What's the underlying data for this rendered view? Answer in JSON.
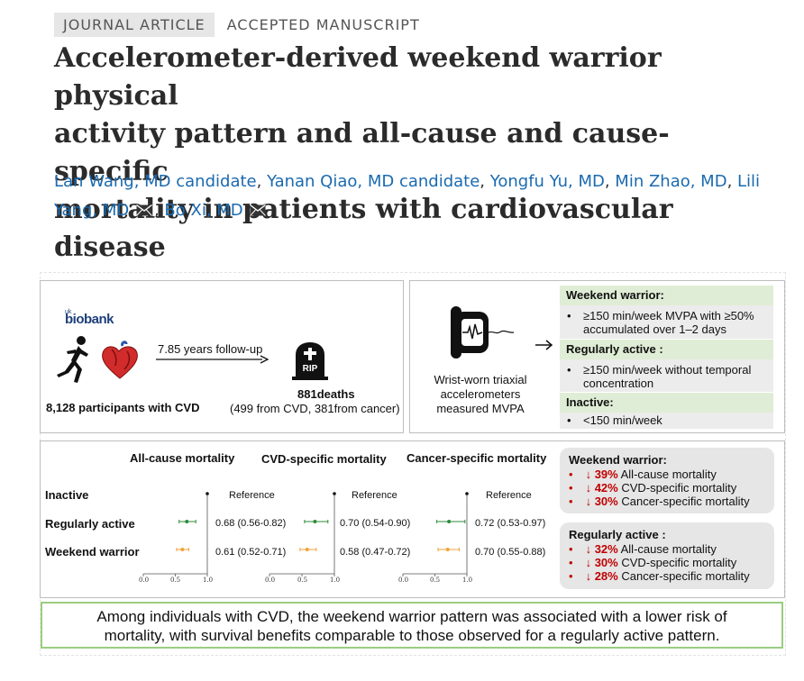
{
  "header": {
    "article_type": "JOURNAL ARTICLE",
    "status": "ACCEPTED MANUSCRIPT",
    "title_lines": [
      "Accelerometer-derived weekend warrior physical",
      "activity pattern and all-cause and cause-specific",
      "mortality in patients with cardiovascular disease"
    ]
  },
  "authors": [
    {
      "name": "Lan Wang, MD candidate",
      "sep": ", "
    },
    {
      "name": "Yanan Qiao, MD candidate",
      "sep": ", "
    },
    {
      "name": "Yongfu Yu, MD",
      "sep": ", "
    },
    {
      "name": "Min Zhao, MD",
      "sep": ", "
    },
    {
      "name": "Lili Yang, MD",
      "sep": ", "
    },
    {
      "name": "Bo Xi, MD",
      "sep": ""
    }
  ],
  "abstract": {
    "biobank": {
      "sup": "uk",
      "name": "biobank"
    },
    "followup": "7.85 years follow-up",
    "participants": "8,128 participants with CVD",
    "deaths": "881deaths",
    "deaths_detail": "(499 from CVD, 381from cancer)",
    "rip": "RIP",
    "wrist_label_lines": [
      "Wrist-worn triaxial",
      "accelerometers",
      "measured MVPA"
    ],
    "definitions": [
      {
        "title": "Weekend warrior:",
        "lines": [
          "≥150 min/week MVPA with ≥50%",
          "accumulated over 1–2 days"
        ]
      },
      {
        "title": "Regularly active :",
        "lines": [
          "≥150 min/week without temporal",
          "concentration"
        ]
      },
      {
        "title": "Inactive:",
        "lines": [
          "<150 min/week"
        ]
      }
    ],
    "forest": {
      "columns": [
        "All-cause mortality",
        "CVD-specific mortality",
        "Cancer-specific mortality"
      ],
      "rows": [
        "Inactive",
        "Regularly active",
        "Weekend warrior"
      ],
      "reference_label": "Reference",
      "axis_ticks": [
        "0.0",
        "0.5",
        "1.0"
      ],
      "estimates": [
        [
          "Reference",
          "0.68 (0.56-0.82)",
          "0.61 (0.52-0.71)"
        ],
        [
          "Reference",
          "0.70 (0.54-0.90)",
          "0.58 (0.47-0.72)"
        ],
        [
          "Reference",
          "0.72 (0.53-0.97)",
          "0.70 (0.55-0.88)"
        ]
      ]
    },
    "summary": [
      {
        "title": "Weekend warrior:",
        "items": [
          {
            "pct": "39%",
            "text": "All-cause mortality"
          },
          {
            "pct": "42%",
            "text": "CVD-specific mortality"
          },
          {
            "pct": "30%",
            "text": "Cancer-specific mortality"
          }
        ]
      },
      {
        "title": "Regularly active :",
        "items": [
          {
            "pct": "32%",
            "text": "All-cause mortality"
          },
          {
            "pct": "30%",
            "text": "CVD-specific mortality"
          },
          {
            "pct": "28%",
            "text": "Cancer-specific mortality"
          }
        ]
      }
    ],
    "conclusion_lines": [
      "Among individuals with CVD, the weekend warrior pattern was associated with a lower risk of",
      "mortality, with survival benefits comparable to those observed for a regularly active pattern."
    ]
  },
  "colors": {
    "regular": "#2e8b3a",
    "weekend": "#f2a33a",
    "accent": "#c00000",
    "link": "#1a6ab0"
  },
  "chart_data": {
    "type": "forest",
    "columns": [
      "All-cause mortality",
      "CVD-specific mortality",
      "Cancer-specific mortality"
    ],
    "xlim": [
      0.0,
      1.0
    ],
    "series": [
      {
        "name": "Regularly active",
        "hr": [
          0.68,
          0.7,
          0.72
        ],
        "lo": [
          0.56,
          0.54,
          0.53
        ],
        "hi": [
          0.82,
          0.9,
          0.97
        ]
      },
      {
        "name": "Weekend warrior",
        "hr": [
          0.61,
          0.58,
          0.7
        ],
        "lo": [
          0.52,
          0.47,
          0.55
        ],
        "hi": [
          0.71,
          0.72,
          0.88
        ]
      }
    ]
  }
}
